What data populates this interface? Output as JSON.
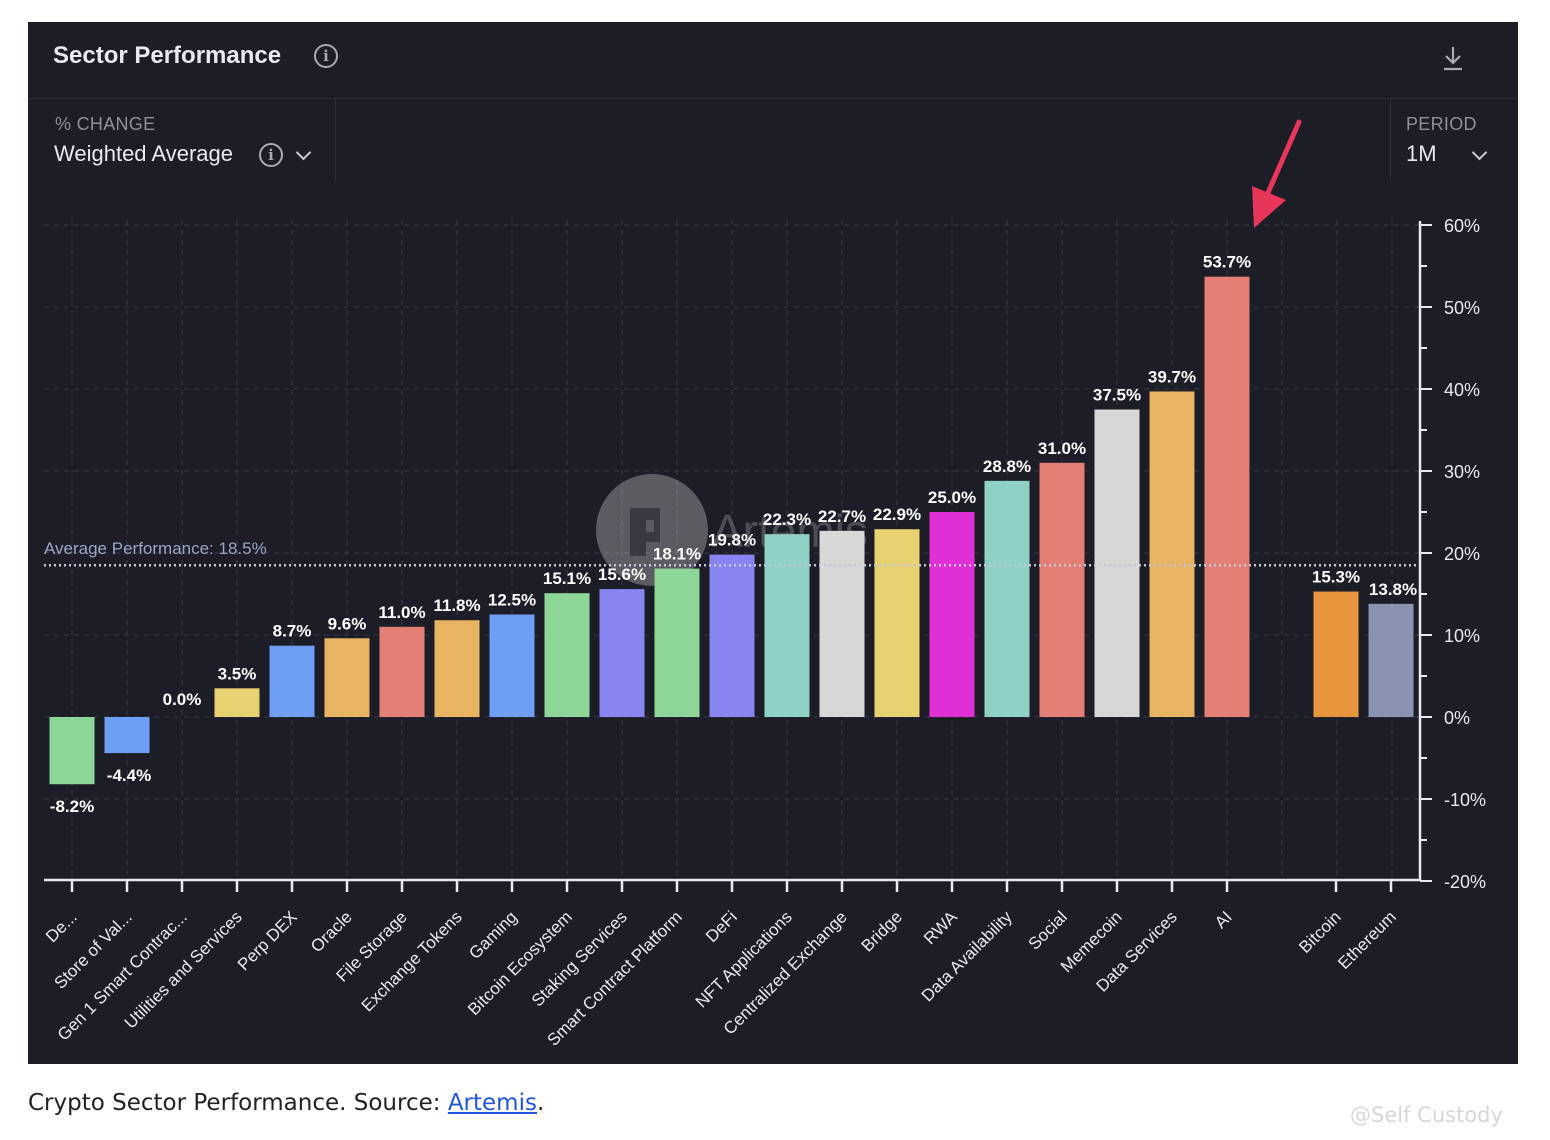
{
  "header": {
    "title": "Sector Performance",
    "metric_label": "% CHANGE",
    "metric_value": "Weighted Average",
    "period_label": "PERIOD",
    "period_value": "1M"
  },
  "caption": {
    "text": "Crypto Sector Performance. Source: ",
    "link": "Artemis",
    "end": "."
  },
  "watermark": "@Self Custody",
  "chart_watermark": "Artemis",
  "chart_data": {
    "type": "bar",
    "categories": [
      "De...",
      "Store of Val...",
      "Gen 1 Smart Contrac...",
      "Utilities and Services",
      "Perp DEX",
      "Oracle",
      "File Storage",
      "Exchange Tokens",
      "Gaming",
      "Bitcoin Ecosystem",
      "Staking Services",
      "Smart Contract Platform",
      "DeFi",
      "NFT Applications",
      "Centralized Exchange",
      "Bridge",
      "RWA",
      "Data Availability",
      "Social",
      "Memecoin",
      "Data Services",
      "AI",
      "Bitcoin",
      "Ethereum"
    ],
    "values": [
      -8.2,
      -4.4,
      0.0,
      3.5,
      8.7,
      9.6,
      11.0,
      11.8,
      12.5,
      15.1,
      15.6,
      18.1,
      19.8,
      22.3,
      22.7,
      22.9,
      25.0,
      28.8,
      31.0,
      37.5,
      39.7,
      53.7,
      15.3,
      13.8
    ],
    "labels": [
      "-8.2%",
      "-4.4%",
      "0.0%",
      "3.5%",
      "8.7%",
      "9.6%",
      "11.0%",
      "11.8%",
      "12.5%",
      "15.1%",
      "15.6%",
      "18.1%",
      "19.8%",
      "22.3%",
      "22.7%",
      "22.9%",
      "25.0%",
      "28.8%",
      "31.0%",
      "37.5%",
      "39.7%",
      "53.7%",
      "15.3%",
      "13.8%"
    ],
    "colors": [
      "#8dd698",
      "#6e9ff5",
      "#e8d170",
      "#e8d170",
      "#6e9ff5",
      "#e8b463",
      "#e37f74",
      "#e8b463",
      "#6e9ff5",
      "#8dd698",
      "#8885f0",
      "#8dd698",
      "#8885f0",
      "#8fd0c7",
      "#d8d8d8",
      "#e8d170",
      "#e030d5",
      "#8fd0c7",
      "#e37f74",
      "#d8d8d8",
      "#e8b463",
      "#e37f74",
      "#e8963c",
      "#8b93b0"
    ],
    "ylim": [
      -20,
      60
    ],
    "yticks": [
      60,
      50,
      40,
      30,
      20,
      10,
      0,
      -10,
      -20
    ],
    "ytick_labels": [
      "60%",
      "50%",
      "40%",
      "30%",
      "20%",
      "10%",
      "0%",
      "-10%",
      "-20%"
    ],
    "average": {
      "value": 18.5,
      "label": "Average Performance: 18.5%"
    },
    "highlight": "AI",
    "grid": true
  }
}
